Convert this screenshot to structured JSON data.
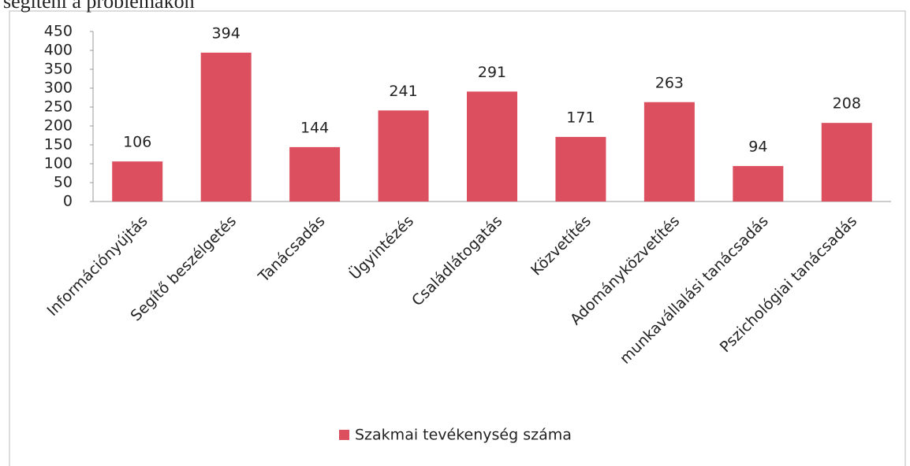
{
  "header": {
    "text": "segíteni a problémákon"
  },
  "chart_data": {
    "type": "bar",
    "categories": [
      "Információnyújtás",
      "Segítő beszélgetés",
      "Tanácsadás",
      "Ügyintézés",
      "Családlátogatás",
      "Közvetítés",
      "Adományközvetítés",
      "munkavállalási tanácsadás",
      "Pszichológiai tanácsadás"
    ],
    "series": [
      {
        "name": "Szakmai tevékenység száma",
        "color": "#dc4f5f",
        "values": [
          106,
          394,
          144,
          241,
          291,
          171,
          263,
          94,
          208
        ]
      }
    ],
    "ylim": [
      0,
      450
    ],
    "yticks": [
      0,
      50,
      100,
      150,
      200,
      250,
      300,
      350,
      400,
      450
    ],
    "grid": false,
    "legend": "bottom"
  }
}
